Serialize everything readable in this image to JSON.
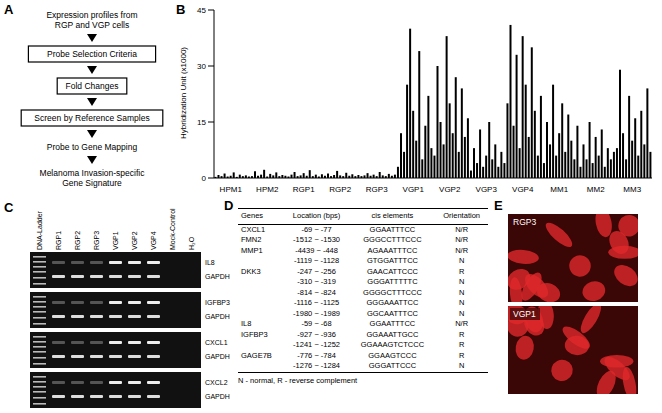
{
  "panels": [
    "A",
    "B",
    "C",
    "D",
    "E"
  ],
  "flowchart": {
    "nodes": [
      {
        "lines": [
          "Expression profiles from",
          "RGP and VGP cells"
        ],
        "boxed": false
      },
      {
        "lines": [
          "Probe Selection Criteria"
        ],
        "boxed": true
      },
      {
        "lines": [
          "Fold Changes"
        ],
        "boxed": true
      },
      {
        "lines": [
          "Screen by Reference Samples"
        ],
        "boxed": true
      },
      {
        "lines": [
          "Probe to Gene Mapping"
        ],
        "boxed": false
      },
      {
        "lines": [
          "Melanoma Invasion-specific",
          "Gene Signature"
        ],
        "boxed": false
      }
    ]
  },
  "chart_data": {
    "type": "bar",
    "y_label": "Hybridization Unit (x1000)",
    "categories": [
      null,
      null,
      null,
      null,
      null,
      "HPM1",
      null,
      null,
      null,
      null,
      null,
      null,
      null,
      null,
      null,
      null,
      null,
      "HPM2",
      null,
      null,
      null,
      null,
      null,
      null,
      null,
      null,
      null,
      null,
      null,
      "RGP1",
      null,
      null,
      null,
      null,
      null,
      null,
      null,
      null,
      null,
      null,
      null,
      "RGP2",
      null,
      null,
      null,
      null,
      null,
      null,
      null,
      null,
      null,
      null,
      null,
      "RGP3",
      null,
      null,
      null,
      null,
      null,
      null,
      null,
      null,
      null,
      null,
      null,
      "VGP1",
      null,
      null,
      null,
      null,
      null,
      null,
      null,
      null,
      null,
      null,
      null,
      "VGP2",
      null,
      null,
      null,
      null,
      null,
      null,
      null,
      null,
      null,
      null,
      null,
      "VGP3",
      null,
      null,
      null,
      null,
      null,
      null,
      null,
      null,
      null,
      null,
      null,
      "VGP4",
      null,
      null,
      null,
      null,
      null,
      null,
      null,
      null,
      null,
      null,
      null,
      "MM1",
      null,
      null,
      null,
      null,
      null,
      null,
      null,
      null,
      null,
      null,
      null,
      "MM2",
      null,
      null,
      null,
      null,
      null,
      null,
      null,
      null,
      null,
      null,
      null,
      "MM3",
      null,
      null,
      null,
      null,
      null,
      null
    ],
    "values": [
      0.3,
      0.8,
      0.5,
      1.2,
      0.4,
      0.6,
      1.5,
      0.3,
      0.9,
      0.5,
      0.7,
      0.4,
      0.5,
      1.8,
      0.6,
      0.9,
      2.2,
      0.4,
      1.1,
      0.7,
      1.5,
      0.5,
      0.8,
      0.6,
      0.4,
      0.9,
      1.6,
      0.5,
      0.7,
      1.3,
      0.6,
      2.1,
      0.5,
      0.9,
      0.4,
      1.0,
      0.6,
      1.2,
      0.5,
      0.8,
      1.9,
      0.7,
      0.5,
      1.4,
      0.6,
      1.0,
      0.5,
      0.8,
      0.5,
      0.7,
      1.3,
      0.6,
      0.9,
      0.5,
      1.6,
      0.7,
      0.5,
      1.1,
      0.6,
      0.9,
      3,
      12,
      7,
      25,
      40,
      18,
      10,
      34,
      5,
      14,
      22,
      8,
      6,
      30,
      15,
      9,
      38,
      20,
      12,
      27,
      7,
      24,
      11,
      16,
      2,
      8,
      4,
      13,
      3,
      6,
      15,
      5,
      9,
      3,
      7,
      4,
      20,
      41,
      14,
      33,
      8,
      38,
      25,
      11,
      35,
      18,
      6,
      22,
      4,
      15,
      9,
      25,
      6,
      12,
      20,
      7,
      17,
      10,
      5,
      14,
      3,
      9,
      5,
      15,
      4,
      11,
      6,
      13,
      3,
      8,
      5,
      7,
      8,
      29,
      12,
      5,
      22,
      10,
      16,
      6,
      18,
      9,
      24,
      7
    ],
    "color": "#000000",
    "ylim": [
      0,
      45
    ],
    "yticks": [
      0,
      15,
      30,
      45
    ],
    "grid": false
  },
  "gel": {
    "lanes": [
      "DNA-Ladder",
      "RGP1",
      "RGP2",
      "RGP3",
      "VGP1",
      "VGP2",
      "VGP4",
      "Mock-Control",
      "H₂O"
    ],
    "genes": [
      [
        "IL8",
        "GAPDH"
      ],
      [
        "IGFBP3",
        "GAPDH"
      ],
      [
        "CXCL1",
        "GAPDH"
      ],
      [
        "CXCL2",
        "GAPDH"
      ]
    ]
  },
  "table": {
    "header": [
      "Genes",
      "Location (bps)",
      "cis elements",
      "Orientation"
    ],
    "rows": [
      [
        "CXCL1",
        "-69 ~ -77",
        "GGAATTTCC",
        "N/R"
      ],
      [
        "FMN2",
        "-1512 ~ -1530",
        "GGGCCTTTCCC",
        "N/R"
      ],
      [
        "MMP1",
        "-4439 ~ -448",
        "AGAAATTTCC",
        "N/R"
      ],
      [
        null,
        "-1119 ~ -1128",
        "GTGGATTTCC",
        "N"
      ],
      [
        "DKK3",
        "-247 ~ -256",
        "GAACATTCCC",
        "R"
      ],
      [
        null,
        "-310 ~ -319",
        "GGGATTTTTC",
        "N"
      ],
      [
        null,
        "-814 ~ -824",
        "GGGGCTTTCCC",
        "N"
      ],
      [
        null,
        "-1116 ~ -1125",
        "GGGAAATTCC",
        "N"
      ],
      [
        null,
        "-1980 ~ -1989",
        "GGCAATTTCC",
        "N"
      ],
      [
        "IL8",
        "-59 ~ -68",
        "GGAATTTCC",
        "N/R"
      ],
      [
        "IGFBP3",
        "-927 ~ -936",
        "GGAAATTGCC",
        "R"
      ],
      [
        null,
        "-1241 ~ -1252",
        "GGAAAGTCTCCC",
        "R"
      ],
      [
        "GAGE7B",
        "-776 ~ -784",
        "GGAAGTCCC",
        "R"
      ],
      [
        null,
        "-1276 ~ -1284",
        "GGGATTCCC",
        "N"
      ]
    ],
    "footnote": "N - normal, R - reverse complement"
  },
  "images": {
    "labels": [
      "RGP3",
      "VGP1"
    ]
  }
}
